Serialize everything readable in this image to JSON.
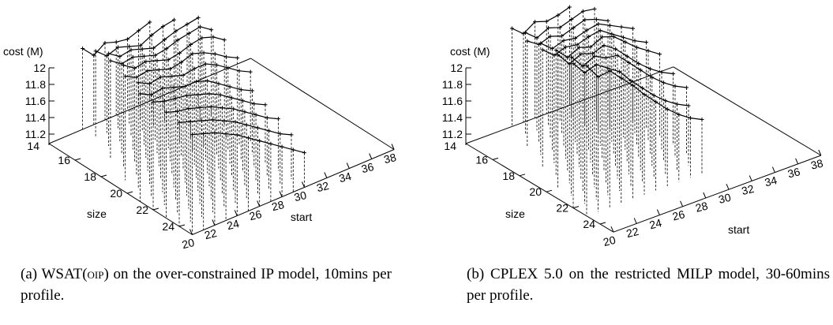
{
  "chart_data": [
    {
      "type": "scatter",
      "title": "",
      "zlabel": "cost (M)",
      "xlabel": "start",
      "ylabel": "size",
      "x_ticks": [
        "20",
        "22",
        "24",
        "26",
        "28",
        "30",
        "32",
        "34",
        "36",
        "38"
      ],
      "y_ticks": [
        "14",
        "16",
        "18",
        "20",
        "22",
        "24"
      ],
      "z_ticks": [
        "12",
        "11.8",
        "11.6",
        "11.4",
        "11.2"
      ],
      "xlim": [
        20,
        38
      ],
      "ylim": [
        14,
        25
      ],
      "zlim": [
        11.0,
        12.0
      ],
      "grid": false,
      "legend": "none",
      "series_per_size": [
        {
          "size": 14,
          "start_from": 23,
          "costs": [
            11.84,
            11.72,
            11.8,
            11.76,
            11.74,
            11.78,
            11.82
          ]
        },
        {
          "size": 15,
          "start_from": 23,
          "costs": [
            11.9,
            11.8,
            11.84,
            11.8,
            11.76,
            11.82,
            11.86,
            11.88
          ]
        },
        {
          "size": 16,
          "start_from": 23,
          "costs": [
            11.96,
            11.88,
            11.9,
            11.86,
            11.82,
            11.86,
            11.9,
            11.92,
            11.94
          ]
        },
        {
          "size": 17,
          "start_from": 22,
          "costs": [
            12.02,
            11.94,
            11.96,
            11.92,
            11.88,
            11.9,
            11.94,
            11.96,
            11.98,
            11.9
          ]
        },
        {
          "size": 18,
          "start_from": 22,
          "costs": [
            12.06,
            11.98,
            12.0,
            11.96,
            11.92,
            11.94,
            11.98,
            12.0,
            11.96,
            11.88
          ]
        },
        {
          "size": 19,
          "start_from": 21,
          "costs": [
            12.08,
            12.02,
            12.04,
            12.0,
            11.96,
            11.98,
            12.02,
            11.98,
            11.92,
            11.84,
            11.78
          ]
        },
        {
          "size": 20,
          "start_from": 21,
          "costs": [
            12.1,
            12.04,
            12.06,
            12.02,
            11.98,
            12.0,
            12.0,
            11.94,
            11.86,
            11.78,
            11.72
          ]
        },
        {
          "size": 21,
          "start_from": 20,
          "costs": [
            12.12,
            12.06,
            12.08,
            12.04,
            12.0,
            12.0,
            11.96,
            11.88,
            11.8,
            11.72,
            11.66
          ]
        },
        {
          "size": 22,
          "start_from": 20,
          "costs": [
            12.12,
            12.08,
            12.06,
            12.04,
            12.0,
            11.96,
            11.9,
            11.82,
            11.74,
            11.66,
            11.6
          ]
        },
        {
          "size": 23,
          "start_from": 20,
          "costs": [
            12.1,
            12.06,
            12.04,
            12.0,
            11.96,
            11.9,
            11.84,
            11.76,
            11.68,
            11.6,
            11.54
          ]
        },
        {
          "size": 24,
          "start_from": 20,
          "costs": [
            12.08,
            12.04,
            12.0,
            11.96,
            11.9,
            11.84,
            11.76,
            11.68,
            11.6,
            11.52,
            11.46
          ]
        },
        {
          "size": 25,
          "start_from": 20,
          "costs": [
            12.04,
            12.0,
            11.96,
            11.9,
            11.84,
            11.76,
            11.68,
            11.6,
            11.52,
            11.44,
            11.36
          ]
        }
      ]
    },
    {
      "type": "scatter",
      "title": "",
      "zlabel": "cost (M)",
      "xlabel": "start",
      "ylabel": "size",
      "x_ticks": [
        "20",
        "22",
        "24",
        "26",
        "28",
        "30",
        "32",
        "34",
        "36",
        "38"
      ],
      "y_ticks": [
        "14",
        "16",
        "18",
        "20",
        "22",
        "24"
      ],
      "z_ticks": [
        "12",
        "11.8",
        "11.6",
        "11.4",
        "11.2"
      ],
      "xlim": [
        20,
        38
      ],
      "ylim": [
        14,
        25
      ],
      "zlim": [
        11.0,
        12.0
      ],
      "grid": false,
      "legend": "none",
      "series_per_size": [
        {
          "size": 14,
          "start_from": 24,
          "costs": [
            12.02,
            11.92,
            12.0,
            11.96,
            11.98,
            12.02
          ]
        },
        {
          "size": 15,
          "start_from": 24,
          "costs": [
            12.06,
            11.96,
            12.02,
            11.98,
            12.02,
            12.06,
            12.04
          ]
        },
        {
          "size": 16,
          "start_from": 23,
          "costs": [
            12.1,
            12.02,
            12.06,
            12.02,
            12.06,
            12.1,
            12.06,
            12.0
          ]
        },
        {
          "size": 17,
          "start_from": 23,
          "costs": [
            12.16,
            12.06,
            12.1,
            12.08,
            12.12,
            12.14,
            12.08,
            12.02,
            11.96
          ]
        },
        {
          "size": 18,
          "start_from": 22,
          "costs": [
            12.22,
            12.12,
            12.16,
            12.14,
            12.18,
            12.2,
            12.12,
            12.04,
            11.96,
            11.9
          ]
        },
        {
          "size": 19,
          "start_from": 22,
          "costs": [
            12.3,
            12.18,
            12.24,
            12.2,
            12.26,
            12.22,
            12.12,
            12.02,
            11.94,
            11.86
          ]
        },
        {
          "size": 20,
          "start_from": 21,
          "costs": [
            12.38,
            12.24,
            12.3,
            12.26,
            12.3,
            12.22,
            12.1,
            11.98,
            11.88,
            11.8,
            11.74
          ]
        },
        {
          "size": 21,
          "start_from": 21,
          "costs": [
            12.44,
            12.3,
            12.36,
            12.3,
            12.28,
            12.16,
            12.04,
            11.92,
            11.82,
            11.74,
            11.68
          ]
        },
        {
          "size": 22,
          "start_from": 20,
          "costs": [
            12.5,
            12.36,
            12.4,
            12.32,
            12.24,
            12.1,
            11.98,
            11.86,
            11.76,
            11.68,
            11.62
          ]
        },
        {
          "size": 23,
          "start_from": 20,
          "costs": [
            12.56,
            12.4,
            12.42,
            12.3,
            12.18,
            12.04,
            11.92,
            11.8,
            11.7,
            11.62,
            11.56
          ]
        }
      ]
    }
  ],
  "captions": {
    "a_label": "(a) ",
    "a_solver_initial": "W",
    "a_solver_rest": "SAT(",
    "a_solver_arg": "OIP",
    "a_solver_close": ")",
    "a_text": " on the over-constrained IP model, 10mins per profile.",
    "b_label": "(b) ",
    "b_solver_initial": "C",
    "b_solver_rest": "PLEX",
    "b_text": " 5.0 on the restricted MILP model, 30-60mins per profile."
  }
}
